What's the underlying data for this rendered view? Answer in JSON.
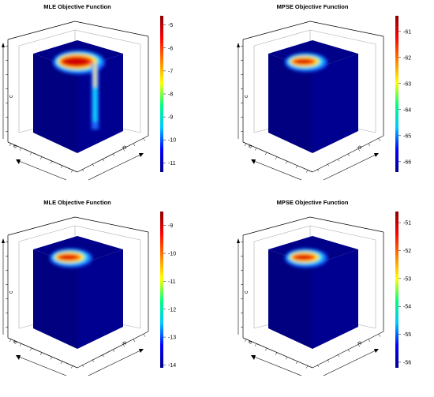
{
  "chart_data": [
    {
      "type": "heatmap",
      "title": "MLE Objective Function",
      "axis_labels": {
        "a": "a",
        "b": "b",
        "c": "c"
      },
      "colorbar": {
        "ticks": [
          -5,
          -6,
          -7,
          -8,
          -9,
          -10,
          -11
        ],
        "range": [
          -11.4,
          -4.6
        ]
      },
      "hotspot": {
        "max_value": -5,
        "ridge": true
      },
      "colorscale": [
        "#00008b",
        "#0000ff",
        "#00c8ff",
        "#00ff80",
        "#ffff00",
        "#ff8000",
        "#ff0000",
        "#8b0000"
      ]
    },
    {
      "type": "heatmap",
      "title": "MPSE Objective Function",
      "axis_labels": {
        "a": "a",
        "b": "b",
        "c": "c"
      },
      "colorbar": {
        "ticks": [
          -61,
          -62,
          -63,
          -64,
          -65,
          -66
        ],
        "range": [
          -66.4,
          -60.4
        ]
      },
      "hotspot": {
        "max_value": -61,
        "ridge": false
      },
      "colorscale": [
        "#00008b",
        "#0000ff",
        "#00c8ff",
        "#00ff80",
        "#ffff00",
        "#ff8000",
        "#ff0000",
        "#8b0000"
      ]
    },
    {
      "type": "heatmap",
      "title": "MLE Objective Function",
      "axis_labels": {
        "a": "a",
        "b": "b",
        "c": "c"
      },
      "colorbar": {
        "ticks": [
          -9,
          -10,
          -11,
          -12,
          -13,
          -14
        ],
        "range": [
          -14.1,
          -8.5
        ]
      },
      "hotspot": {
        "max_value": -9,
        "ridge": false
      },
      "colorscale": [
        "#00008b",
        "#0000ff",
        "#00c8ff",
        "#00ff80",
        "#ffff00",
        "#ff8000",
        "#ff0000",
        "#8b0000"
      ]
    },
    {
      "type": "heatmap",
      "title": "MPSE Objective Function",
      "axis_labels": {
        "a": "a",
        "b": "b",
        "c": "c"
      },
      "colorbar": {
        "ticks": [
          -51,
          -52,
          -53,
          -54,
          -55,
          -56
        ],
        "range": [
          -56.2,
          -50.6
        ]
      },
      "hotspot": {
        "max_value": -51,
        "ridge": false
      },
      "colorscale": [
        "#00008b",
        "#0000ff",
        "#00c8ff",
        "#00ff80",
        "#ffff00",
        "#ff8000",
        "#ff0000",
        "#8b0000"
      ]
    }
  ]
}
